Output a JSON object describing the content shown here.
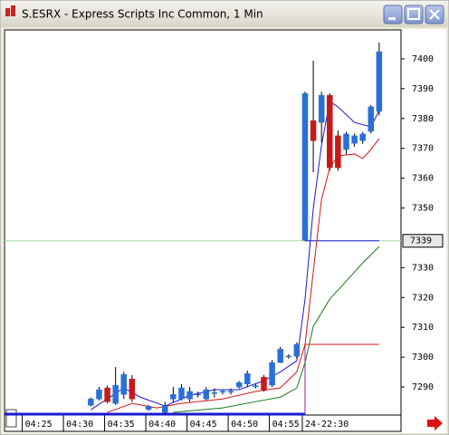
{
  "chart_data": {
    "type": "candlestick",
    "title": "S.ESRX - Express Scripts Inc Common, 1 Min",
    "up_color": "#2a6fd6",
    "down_color": "#c81818",
    "xlim": [
      -2.48,
      45.65
    ],
    "ylim": [
      7280.6,
      7409.7
    ],
    "xticks": [
      {
        "value": 0,
        "label": "04:25"
      },
      {
        "value": 5,
        "label": "04:30"
      },
      {
        "value": 10,
        "label": "04:35"
      },
      {
        "value": 15,
        "label": "04:40"
      },
      {
        "value": 20,
        "label": "04:45"
      },
      {
        "value": 25,
        "label": "04:50"
      },
      {
        "value": 30,
        "label": "04:55"
      },
      {
        "value": 34,
        "label": "24-22:30"
      }
    ],
    "yticks": [
      7290,
      7300,
      7310,
      7320,
      7330,
      7350,
      7360,
      7370,
      7380,
      7390,
      7400
    ],
    "last_price": {
      "value": 7339,
      "label": "7339",
      "color": "#9ed99e"
    },
    "candles": [
      {
        "x": 8,
        "open": 7283.9,
        "high": 7286.5,
        "low": 7283.5,
        "close": 7286.0
      },
      {
        "x": 9,
        "open": 7286.0,
        "high": 7290.0,
        "low": 7285.5,
        "close": 7289.1
      },
      {
        "x": 10,
        "open": 7289.7,
        "high": 7290.5,
        "low": 7284.5,
        "close": 7285.1
      },
      {
        "x": 11,
        "open": 7284.5,
        "high": 7296.7,
        "low": 7284.0,
        "close": 7290.6
      },
      {
        "x": 12,
        "open": 7287.5,
        "high": 7295.1,
        "low": 7286.0,
        "close": 7294.2
      },
      {
        "x": 13,
        "open": 7292.7,
        "high": 7294.0,
        "low": 7285.0,
        "close": 7286.0
      },
      {
        "x": 15,
        "open": 7282.5,
        "high": 7284.0,
        "low": 7282.0,
        "close": 7283.5
      },
      {
        "x": 17,
        "open": 7281.5,
        "high": 7285.0,
        "low": 7281.0,
        "close": 7283.6
      },
      {
        "x": 18,
        "open": 7286.0,
        "high": 7290.0,
        "low": 7285.0,
        "close": 7287.5
      },
      {
        "x": 19,
        "open": 7286.0,
        "high": 7291.0,
        "low": 7285.5,
        "close": 7289.7
      },
      {
        "x": 20,
        "open": 7286.0,
        "high": 7290.0,
        "low": 7285.0,
        "close": 7288.5
      },
      {
        "x": 21,
        "open": 7287.5,
        "high": 7288.5,
        "low": 7286.5,
        "close": 7287.6
      },
      {
        "x": 22,
        "open": 7286.0,
        "high": 7290.0,
        "low": 7285.5,
        "close": 7289.1
      },
      {
        "x": 23,
        "open": 7288.0,
        "high": 7289.5,
        "low": 7286.5,
        "close": 7288.1
      },
      {
        "x": 24,
        "open": 7288.5,
        "high": 7289.0,
        "low": 7287.5,
        "close": 7288.6
      },
      {
        "x": 25,
        "open": 7288.5,
        "high": 7289.5,
        "low": 7287.5,
        "close": 7288.6
      },
      {
        "x": 26,
        "open": 7290.0,
        "high": 7292.0,
        "low": 7289.5,
        "close": 7291.5
      },
      {
        "x": 27,
        "open": 7291.0,
        "high": 7295.5,
        "low": 7290.0,
        "close": 7294.5
      },
      {
        "x": 28,
        "open": 7290.3,
        "high": 7291.0,
        "low": 7289.5,
        "close": 7290.4
      },
      {
        "x": 29,
        "open": 7293.3,
        "high": 7294.0,
        "low": 7288.5,
        "close": 7289.1
      },
      {
        "x": 30,
        "open": 7290.6,
        "high": 7299.0,
        "low": 7290.0,
        "close": 7298.2
      },
      {
        "x": 31,
        "open": 7298.2,
        "high": 7303.5,
        "low": 7298.0,
        "close": 7302.7
      },
      {
        "x": 32,
        "open": 7300.3,
        "high": 7301.0,
        "low": 7299.5,
        "close": 7300.4
      },
      {
        "x": 33,
        "open": 7300.3,
        "high": 7305.0,
        "low": 7299.5,
        "close": 7304.3
      },
      {
        "x": 34,
        "open": 7339.2,
        "high": 7389.0,
        "low": 7339.0,
        "close": 7388.4
      },
      {
        "x": 35,
        "open": 7379.3,
        "high": 7399.4,
        "low": 7362.0,
        "close": 7372.6
      },
      {
        "x": 36,
        "open": 7378.7,
        "high": 7389.0,
        "low": 7372.0,
        "close": 7387.8
      },
      {
        "x": 37,
        "open": 7387.8,
        "high": 7388.5,
        "low": 7362.5,
        "close": 7363.5
      },
      {
        "x": 38,
        "open": 7374.2,
        "high": 7376.0,
        "low": 7362.5,
        "close": 7363.5
      },
      {
        "x": 39,
        "open": 7369.6,
        "high": 7375.5,
        "low": 7368.0,
        "close": 7374.8
      },
      {
        "x": 40,
        "open": 7371.7,
        "high": 7375.0,
        "low": 7370.5,
        "close": 7374.2
      },
      {
        "x": 41,
        "open": 7372.6,
        "high": 7375.5,
        "low": 7371.5,
        "close": 7374.8
      },
      {
        "x": 42,
        "open": 7375.7,
        "high": 7384.5,
        "low": 7375.0,
        "close": 7383.9
      },
      {
        "x": 43,
        "open": 7382.4,
        "high": 7405.5,
        "low": 7381.0,
        "close": 7402.4
      }
    ],
    "lines": [
      {
        "color": "#1a1ad0",
        "x": [
          8,
          10,
          12,
          14,
          17,
          20,
          23,
          26,
          29,
          31,
          33,
          34,
          35,
          36,
          37,
          38,
          40,
          42,
          43
        ],
        "values": [
          7282.4,
          7286.0,
          7289.7,
          7286.6,
          7283.6,
          7287.2,
          7289.1,
          7289.1,
          7292.1,
          7295.1,
          7298.8,
          7319.5,
          7349.8,
          7371.1,
          7385.7,
          7383.9,
          7378.7,
          7377.2,
          7382.7
        ]
      },
      {
        "color": "#d01818",
        "x": [
          10,
          13,
          16,
          19,
          24,
          28,
          31,
          33,
          34,
          35,
          36,
          37,
          38,
          40,
          41,
          42,
          43
        ],
        "values": [
          7281.5,
          7284.5,
          7283.0,
          7284.5,
          7286.0,
          7288.5,
          7289.7,
          7295.1,
          7304.3,
          7328.6,
          7352.9,
          7363.5,
          7367.5,
          7368.1,
          7366.6,
          7369.6,
          7373.3
        ]
      },
      {
        "color": "#1a7a1a",
        "x": [
          18,
          24,
          28,
          31,
          33,
          34,
          35,
          37,
          39,
          41,
          43
        ],
        "values": [
          7281.5,
          7283.0,
          7285.1,
          7286.6,
          7289.7,
          7298.2,
          7310.3,
          7319.5,
          7325.5,
          7331.6,
          7337.1
        ]
      }
    ],
    "levels": [
      {
        "value": 7339,
        "color": "#1a1ad0",
        "x": [
          34,
          43
        ]
      },
      {
        "value": 7304.3,
        "color": "#d01818",
        "x": [
          34,
          43
        ]
      }
    ]
  }
}
